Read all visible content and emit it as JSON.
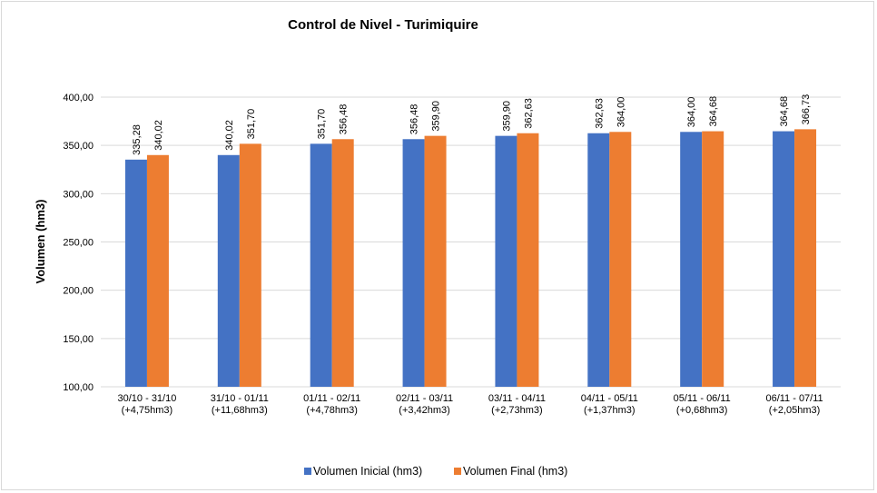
{
  "chart_data": {
    "type": "bar",
    "title": "Control de Nivel - Turimiquire",
    "ylabel": "Volumen (hm3)",
    "xlabel": "",
    "ylim": [
      100,
      400
    ],
    "yticks": [
      "100,00",
      "150,00",
      "200,00",
      "250,00",
      "300,00",
      "350,00",
      "400,00"
    ],
    "ytick_values": [
      100,
      150,
      200,
      250,
      300,
      350,
      400
    ],
    "grid": true,
    "legend_position": "bottom",
    "categories": [
      [
        "30/10 - 31/10",
        "(+4,75hm3)"
      ],
      [
        "31/10 - 01/11",
        "(+11,68hm3)"
      ],
      [
        "01/11 - 02/11",
        "(+4,78hm3)"
      ],
      [
        "02/11 - 03/11",
        "(+3,42hm3)"
      ],
      [
        "03/11 - 04/11",
        "(+2,73hm3)"
      ],
      [
        "04/11 - 05/11",
        "(+1,37hm3)"
      ],
      [
        "05/11 - 06/11",
        "(+0,68hm3)"
      ],
      [
        "06/11 - 07/11",
        "(+2,05hm3)"
      ]
    ],
    "series": [
      {
        "name": "Volumen Inicial (hm3)",
        "color": "#4472c4",
        "values": [
          335.28,
          340.02,
          351.7,
          356.48,
          359.9,
          362.63,
          364.0,
          364.68
        ],
        "labels": [
          "335,28",
          "340,02",
          "351,70",
          "356,48",
          "359,90",
          "362,63",
          "364,00",
          "364,68"
        ]
      },
      {
        "name": "Volumen Final (hm3)",
        "color": "#ed7d31",
        "values": [
          340.02,
          351.7,
          356.48,
          359.9,
          362.63,
          364.0,
          364.68,
          366.73
        ],
        "labels": [
          "340,02",
          "351,70",
          "356,48",
          "359,90",
          "362,63",
          "364,00",
          "364,68",
          "366,73"
        ]
      }
    ]
  }
}
